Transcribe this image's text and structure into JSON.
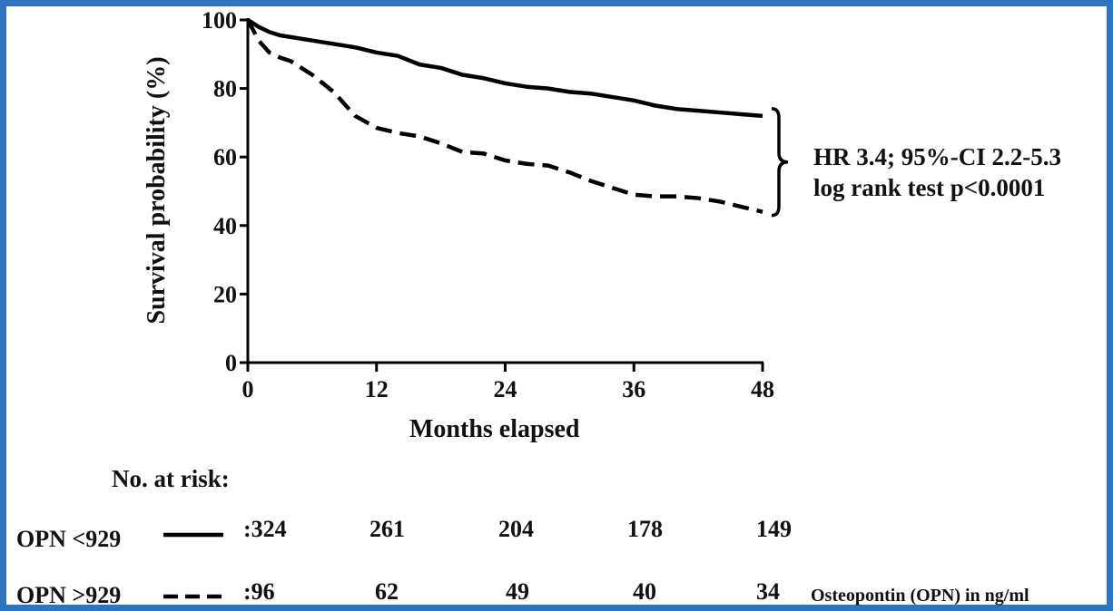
{
  "chart_data": {
    "type": "line",
    "xlabel": "Months elapsed",
    "ylabel": "Survival probability (%)",
    "xlim": [
      0,
      48
    ],
    "ylim": [
      0,
      100
    ],
    "xticks": [
      "0",
      "12",
      "24",
      "36",
      "48"
    ],
    "yticks": [
      "0",
      "20",
      "40",
      "60",
      "80",
      "100"
    ],
    "grid": false,
    "series": [
      {
        "name": "OPN <929",
        "style": "solid",
        "x": [
          0,
          1,
          2,
          3,
          4,
          6,
          8,
          10,
          12,
          14,
          16,
          18,
          20,
          22,
          24,
          26,
          28,
          30,
          32,
          34,
          36,
          38,
          40,
          42,
          44,
          46,
          48
        ],
        "y": [
          100,
          98,
          96.5,
          95.5,
          95,
          94,
          93,
          92,
          90.5,
          89.5,
          87,
          86,
          84,
          83,
          81.5,
          80.5,
          80,
          79,
          78.5,
          77.5,
          76.5,
          75,
          74,
          73.5,
          73,
          72.5,
          72
        ]
      },
      {
        "name": "OPN >929",
        "style": "dashed",
        "x": [
          0,
          1,
          2,
          3,
          4,
          6,
          8,
          10,
          12,
          14,
          16,
          18,
          20,
          22,
          24,
          26,
          28,
          30,
          32,
          34,
          36,
          38,
          40,
          42,
          44,
          46,
          48
        ],
        "y": [
          100,
          94,
          90.5,
          89,
          88,
          84,
          79,
          72,
          68.5,
          67,
          66,
          64,
          61.5,
          61,
          59,
          58,
          57.5,
          55.5,
          53,
          51,
          49,
          48.5,
          48.5,
          48,
          47,
          45.5,
          44
        ]
      }
    ],
    "annotation": {
      "line1": "HR 3.4; 95%-CI 2.2-5.3",
      "line2": "log rank test p<0.0001"
    },
    "risk_table": {
      "title": "No. at risk:",
      "rows": [
        {
          "label": "OPN <929",
          "values": [
            ":324",
            "261",
            "204",
            "178",
            "149"
          ]
        },
        {
          "label": "OPN >929",
          "values": [
            ":96",
            "62",
            "49",
            "40",
            "34"
          ]
        }
      ],
      "units_note": "Osteopontin (OPN) in ng/ml"
    }
  }
}
